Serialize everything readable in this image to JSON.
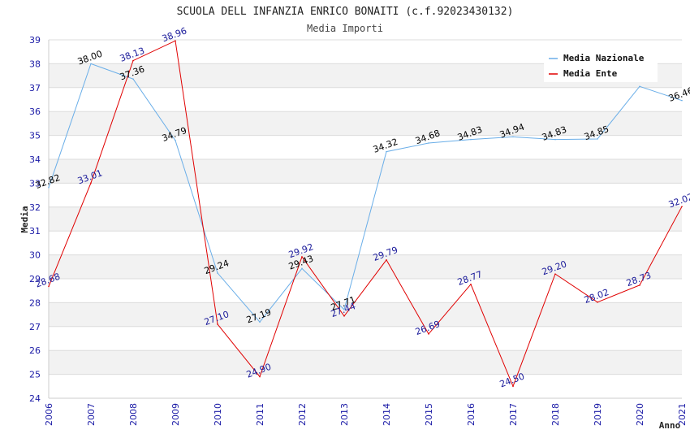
{
  "chart_data": {
    "type": "line",
    "title": "SCUOLA DELL INFANZIA ENRICO BONAITI (c.f.92023430132)",
    "subtitle": "Media Importi",
    "xlabel": "Anno",
    "ylabel": "Media",
    "ylim": [
      24,
      39
    ],
    "yticks": [
      "24",
      "25",
      "26",
      "27",
      "28",
      "29",
      "30",
      "31",
      "32",
      "33",
      "34",
      "35",
      "36",
      "37",
      "38",
      "39"
    ],
    "categories": [
      "2006",
      "2007",
      "2008",
      "2009",
      "2010",
      "2011",
      "2012",
      "2013",
      "2014",
      "2015",
      "2016",
      "2017",
      "2018",
      "2019",
      "2020",
      "2021"
    ],
    "series": [
      {
        "name": "Media Nazionale",
        "color": "#6aaee8",
        "label_color": "#000000",
        "values": [
          32.82,
          38.0,
          37.36,
          34.79,
          29.24,
          27.19,
          29.43,
          27.71,
          34.32,
          34.68,
          34.83,
          34.94,
          34.83,
          34.85,
          37.05,
          36.46
        ],
        "labels": [
          "32.82",
          "38.00",
          "37.36",
          "34.79",
          "29.24",
          "27.19",
          "29.43",
          "27.71",
          "34.32",
          "34.68",
          "34.83",
          "34.94",
          "34.83",
          "34.85",
          "",
          "36.46"
        ]
      },
      {
        "name": "Media Ente",
        "color": "#e00000",
        "label_color": "#1a1a9a",
        "values": [
          28.68,
          33.01,
          38.13,
          38.96,
          27.1,
          24.9,
          29.92,
          27.44,
          29.79,
          26.69,
          28.77,
          24.5,
          29.2,
          28.02,
          28.73,
          32.02
        ],
        "labels": [
          "28.68",
          "33.01",
          "38.13",
          "38.96",
          "27.10",
          "24.90",
          "29.92",
          "27.44",
          "29.79",
          "26.69",
          "28.77",
          "24.50",
          "29.20",
          "28.02",
          "28.73",
          "32.02"
        ]
      }
    ],
    "grid": true,
    "legend_position": "top-right",
    "colors": {
      "tick_text": "#1a1aa6",
      "band": "#f2f2f2",
      "grid": "#dcdcdc",
      "axis": "#cccccc"
    }
  }
}
